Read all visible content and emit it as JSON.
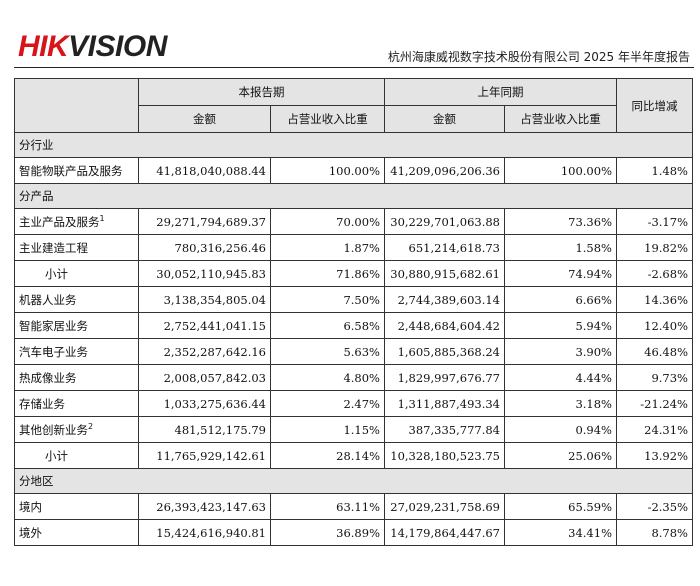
{
  "header": {
    "logo_hik": "HIK",
    "logo_vision": "VISION",
    "report_title": "杭州海康威视数字技术股份有限公司 2025 年半年度报告"
  },
  "table": {
    "period_current": "本报告期",
    "period_prior": "上年同期",
    "yoy": "同比增减",
    "col_amount_current": "金额",
    "col_ratio_current": "占营业收入比重",
    "col_amount_prior": "金额",
    "col_ratio_prior": "占营业收入比重",
    "section_industry": "分行业",
    "section_product": "分产品",
    "section_region": "分地区",
    "industry_rows": [
      {
        "label": "智能物联产品及服务",
        "sup": "",
        "amt": "41,818,040,088.44",
        "ratio": "100.00%",
        "prior_amt": "41,209,096,206.36",
        "prior_ratio": "100.00%",
        "yoy": "1.48%"
      }
    ],
    "product_rows_a": [
      {
        "label": "主业产品及服务",
        "sup": "1",
        "amt": "29,271,794,689.37",
        "ratio": "70.00%",
        "prior_amt": "30,229,701,063.88",
        "prior_ratio": "73.36%",
        "yoy": "-3.17%"
      },
      {
        "label": "主业建造工程",
        "sup": "",
        "amt": "780,316,256.46",
        "ratio": "1.87%",
        "prior_amt": "651,214,618.73",
        "prior_ratio": "1.58%",
        "yoy": "19.82%"
      }
    ],
    "subtotal_a": {
      "label": "小计",
      "amt": "30,052,110,945.83",
      "ratio": "71.86%",
      "prior_amt": "30,880,915,682.61",
      "prior_ratio": "74.94%",
      "yoy": "-2.68%"
    },
    "product_rows_b": [
      {
        "label": "机器人业务",
        "sup": "",
        "amt": "3,138,354,805.04",
        "ratio": "7.50%",
        "prior_amt": "2,744,389,603.14",
        "prior_ratio": "6.66%",
        "yoy": "14.36%"
      },
      {
        "label": "智能家居业务",
        "sup": "",
        "amt": "2,752,441,041.15",
        "ratio": "6.58%",
        "prior_amt": "2,448,684,604.42",
        "prior_ratio": "5.94%",
        "yoy": "12.40%"
      },
      {
        "label": "汽车电子业务",
        "sup": "",
        "amt": "2,352,287,642.16",
        "ratio": "5.63%",
        "prior_amt": "1,605,885,368.24",
        "prior_ratio": "3.90%",
        "yoy": "46.48%"
      },
      {
        "label": "热成像业务",
        "sup": "",
        "amt": "2,008,057,842.03",
        "ratio": "4.80%",
        "prior_amt": "1,829,997,676.77",
        "prior_ratio": "4.44%",
        "yoy": "9.73%"
      },
      {
        "label": "存储业务",
        "sup": "",
        "amt": "1,033,275,636.44",
        "ratio": "2.47%",
        "prior_amt": "1,311,887,493.34",
        "prior_ratio": "3.18%",
        "yoy": "-21.24%"
      },
      {
        "label": "其他创新业务",
        "sup": "2",
        "amt": "481,512,175.79",
        "ratio": "1.15%",
        "prior_amt": "387,335,777.84",
        "prior_ratio": "0.94%",
        "yoy": "24.31%"
      }
    ],
    "subtotal_b": {
      "label": "小计",
      "amt": "11,765,929,142.61",
      "ratio": "28.14%",
      "prior_amt": "10,328,180,523.75",
      "prior_ratio": "25.06%",
      "yoy": "13.92%"
    },
    "region_rows": [
      {
        "label": "境内",
        "sup": "",
        "amt": "26,393,423,147.63",
        "ratio": "63.11%",
        "prior_amt": "27,029,231,758.69",
        "prior_ratio": "65.59%",
        "yoy": "-2.35%"
      },
      {
        "label": "境外",
        "sup": "",
        "amt": "15,424,616,940.81",
        "ratio": "36.89%",
        "prior_amt": "14,179,864,447.67",
        "prior_ratio": "34.41%",
        "yoy": "8.78%"
      }
    ]
  }
}
